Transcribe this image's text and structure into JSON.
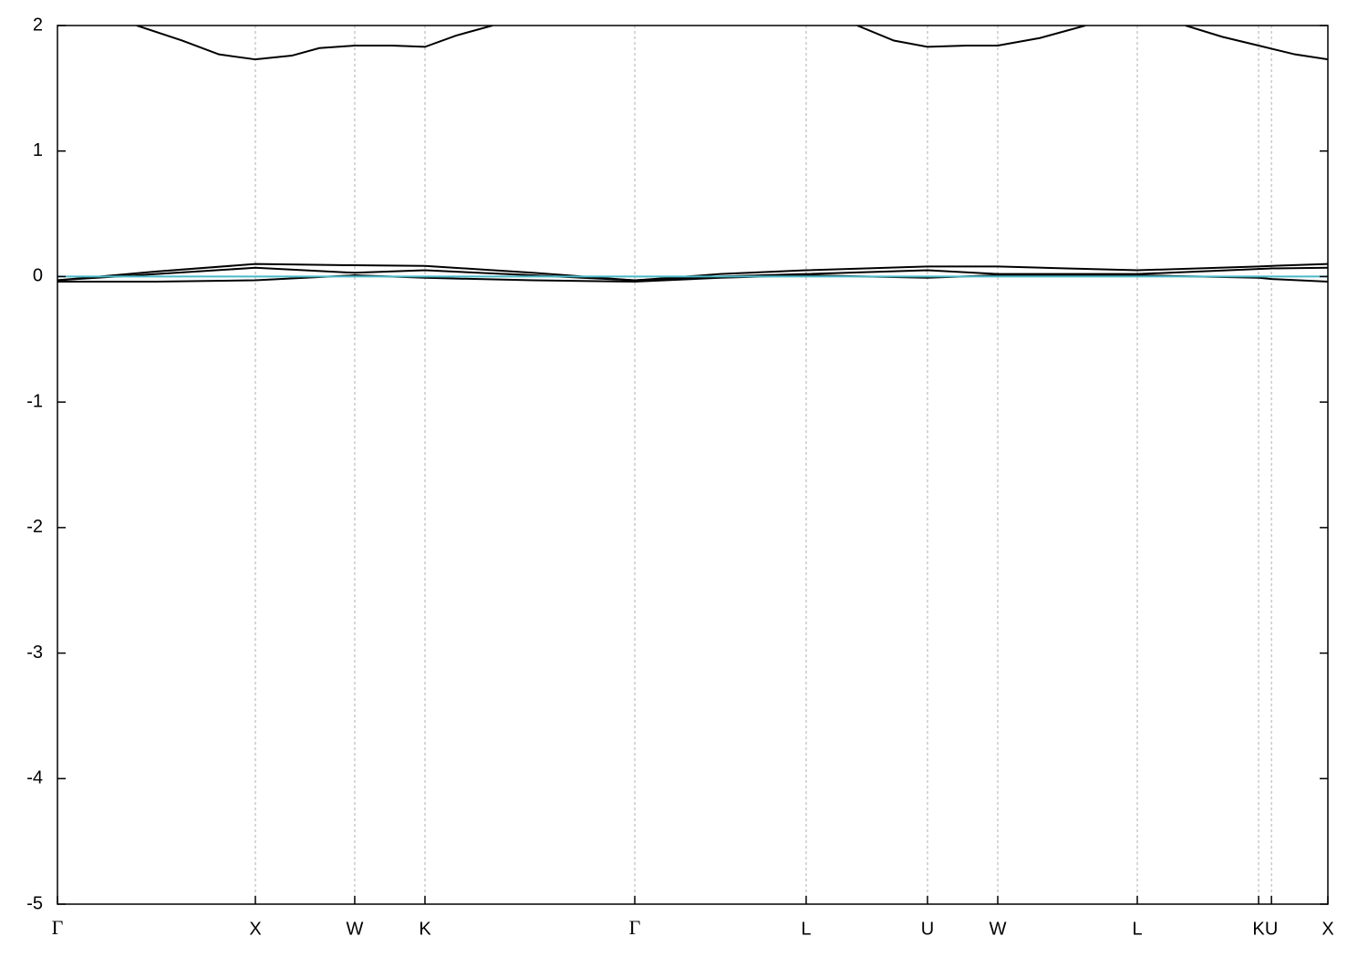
{
  "chart_data": {
    "type": "line",
    "xlim": [
      0,
      6.419
    ],
    "ylim": [
      -5,
      2
    ],
    "yticks": [
      -5,
      -4,
      -3,
      -2,
      -1,
      0,
      1,
      2
    ],
    "xticks": [
      {
        "value": 0,
        "label": "Γ"
      },
      {
        "value": 1.0,
        "label": "X"
      },
      {
        "value": 1.502,
        "label": "W"
      },
      {
        "value": 1.857,
        "label": "K"
      },
      {
        "value": 2.917,
        "label": "Γ"
      },
      {
        "value": 3.783,
        "label": "L"
      },
      {
        "value": 4.396,
        "label": "U"
      },
      {
        "value": 4.751,
        "label": "W"
      },
      {
        "value": 5.456,
        "label": "L"
      },
      {
        "value": 6.069,
        "label": "K"
      },
      {
        "value": 6.134,
        "label": "U"
      },
      {
        "value": 6.419,
        "label": "X"
      }
    ],
    "grid": true,
    "series": [
      {
        "color": "#000000",
        "x": [
          0.401,
          0.631,
          0.816,
          1.0,
          1.184,
          1.323,
          1.502,
          1.691,
          1.857,
          2.014,
          2.198,
          3.0,
          4.041,
          4.226,
          4.396,
          4.594,
          4.751,
          4.963,
          5.194,
          5.45,
          5.7,
          5.885,
          6.069,
          6.253,
          6.419
        ],
        "values": [
          2.0,
          1.88,
          1.77,
          1.73,
          1.76,
          1.82,
          1.84,
          1.84,
          1.83,
          1.92,
          2.0,
          null,
          2.0,
          1.88,
          1.83,
          1.84,
          1.84,
          1.9,
          2.0,
          null,
          2.0,
          1.91,
          1.84,
          1.77,
          1.73
        ]
      },
      {
        "color": "#000000",
        "x": [
          0,
          0.5,
          1.0,
          1.502,
          1.857,
          2.4,
          2.917,
          3.35,
          3.783,
          4.396,
          4.751,
          5.1,
          5.456,
          6.069,
          6.134,
          6.419
        ],
        "values": [
          -0.03,
          0.04,
          0.1,
          0.09,
          0.085,
          0.03,
          -0.03,
          0.02,
          0.05,
          0.08,
          0.08,
          0.065,
          0.05,
          0.08,
          0.085,
          0.1
        ]
      },
      {
        "color": "#000000",
        "x": [
          0,
          0.5,
          1.0,
          1.502,
          1.857,
          2.4,
          2.917,
          3.35,
          3.783,
          4.396,
          4.751,
          5.1,
          5.456,
          6.069,
          6.134,
          6.419
        ],
        "values": [
          -0.03,
          0.02,
          0.07,
          0.03,
          0.05,
          0.01,
          -0.03,
          0.0,
          0.02,
          0.05,
          0.02,
          0.02,
          0.02,
          0.06,
          0.065,
          0.07
        ]
      },
      {
        "color": "#000000",
        "x": [
          0,
          0.5,
          1.0,
          1.502,
          1.857,
          2.4,
          2.917,
          3.35,
          3.783,
          4.396,
          4.751,
          5.1,
          5.456,
          6.069,
          6.134,
          6.419
        ],
        "values": [
          -0.04,
          -0.04,
          -0.03,
          0.01,
          -0.01,
          -0.03,
          -0.04,
          -0.01,
          0.01,
          -0.01,
          0.01,
          0.01,
          0.01,
          -0.01,
          -0.02,
          -0.04
        ]
      },
      {
        "color": "#4cb8c8",
        "x": [
          0,
          6.419
        ],
        "values": [
          0,
          0
        ]
      }
    ]
  }
}
